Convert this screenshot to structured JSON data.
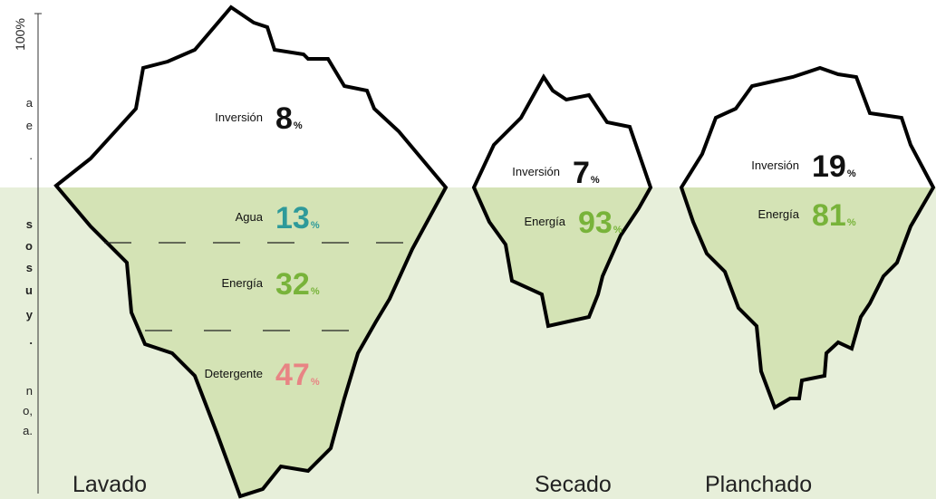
{
  "axis_label": "100%",
  "side_text": [
    "a",
    "e",
    ".",
    "s",
    "o",
    "s",
    "u",
    "y",
    ".",
    "n",
    "o,",
    "a."
  ],
  "icebergs": [
    {
      "name": "Lavado",
      "segments": [
        {
          "label": "Inversión",
          "value": "8",
          "unit": "%"
        },
        {
          "label": "Agua",
          "value": "13",
          "unit": "%"
        },
        {
          "label": "Energía",
          "value": "32",
          "unit": "%"
        },
        {
          "label": "Detergente",
          "value": "47",
          "unit": "%"
        }
      ]
    },
    {
      "name": "Secado",
      "segments": [
        {
          "label": "Inversión",
          "value": "7",
          "unit": "%"
        },
        {
          "label": "Energía",
          "value": "93",
          "unit": "%"
        }
      ]
    },
    {
      "name": "Planchado",
      "segments": [
        {
          "label": "Inversión",
          "value": "19",
          "unit": "%"
        },
        {
          "label": "Energía",
          "value": "81",
          "unit": "%"
        }
      ]
    }
  ]
}
